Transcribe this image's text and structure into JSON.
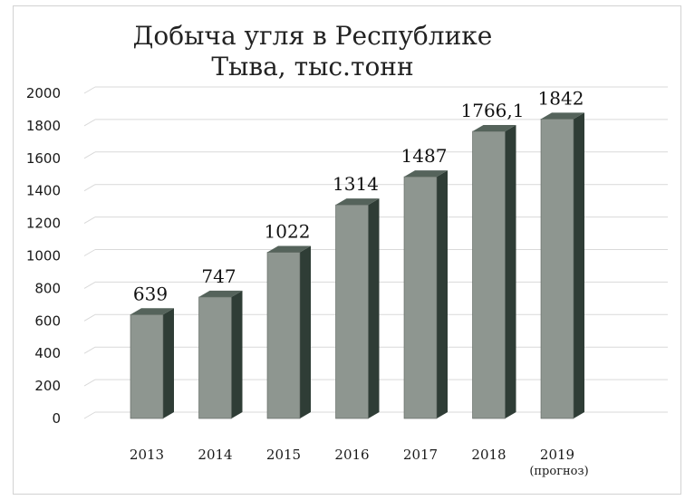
{
  "chart_data": {
    "type": "bar",
    "title_lines": [
      "Добыча угля в Республике",
      "Тыва, тыс.тонн"
    ],
    "categories": [
      "2013",
      "2014",
      "2015",
      "2016",
      "2017",
      "2018",
      "2019"
    ],
    "category_sublabels": [
      "",
      "",
      "",
      "",
      "",
      "",
      "(прогноз)"
    ],
    "values": [
      639,
      747,
      1022,
      1314,
      1487,
      1766.1,
      1842
    ],
    "data_labels": [
      "639",
      "747",
      "1022",
      "1314",
      "1487",
      "1766,1",
      "1842"
    ],
    "yticks": [
      "0",
      "200",
      "400",
      "600",
      "800",
      "1000",
      "1200",
      "1400",
      "1600",
      "1800",
      "2000"
    ],
    "ylim": [
      0,
      2000
    ],
    "grid": true,
    "style": "3d-column",
    "colors": {
      "bar_front": "#8e9690",
      "bar_side": "#2f3d36",
      "bar_top": "#55635b",
      "grid": "#d9d9d9"
    }
  }
}
